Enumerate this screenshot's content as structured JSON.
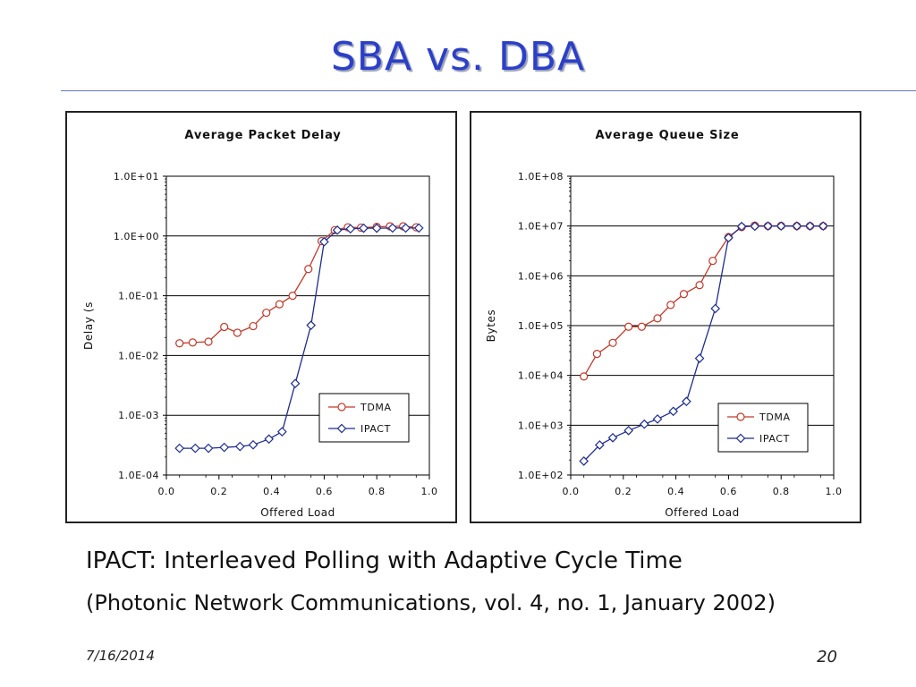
{
  "slide": {
    "title": "SBA vs.  DBA",
    "caption_line1": "IPACT: Interleaved Polling with Adaptive Cycle Time",
    "caption_line2": "(Photonic Network Communications, vol. 4, no. 1, January 2002)",
    "date": "7/16/2014",
    "page_number": "20"
  },
  "colors": {
    "title": "#2B3FC8",
    "tdma": "#C0392B",
    "ipact": "#1F2D8C"
  },
  "chart_data": [
    {
      "type": "line",
      "title": "Average Packet Delay",
      "xlabel": "Offered Load",
      "ylabel": "Delay (s",
      "yscale": "log",
      "xlim": [
        0.0,
        1.0
      ],
      "ylim": [
        0.0001,
        10
      ],
      "x_ticks": [
        "0.0",
        "0.2",
        "0.4",
        "0.6",
        "0.8",
        "1.0"
      ],
      "y_ticks": [
        "1.0E-04",
        "1.0E-03",
        "1.0E-02",
        "1.0E-01",
        "1.0E+00",
        "1.0E+01"
      ],
      "grid": "horizontal",
      "legend_position": "bottom-right",
      "series": [
        {
          "name": "TDMA",
          "marker": "circle",
          "x": [
            0.05,
            0.1,
            0.16,
            0.22,
            0.27,
            0.33,
            0.38,
            0.43,
            0.48,
            0.54,
            0.59,
            0.64,
            0.69,
            0.74,
            0.8,
            0.85,
            0.9,
            0.95
          ],
          "y": [
            0.016,
            0.0165,
            0.017,
            0.03,
            0.024,
            0.031,
            0.052,
            0.072,
            0.1,
            0.28,
            0.82,
            1.25,
            1.4,
            1.38,
            1.42,
            1.45,
            1.45,
            1.4
          ]
        },
        {
          "name": "IPACT",
          "marker": "diamond",
          "x": [
            0.05,
            0.11,
            0.16,
            0.22,
            0.28,
            0.33,
            0.39,
            0.44,
            0.49,
            0.55,
            0.6,
            0.65,
            0.7,
            0.75,
            0.8,
            0.86,
            0.91,
            0.96
          ],
          "y": [
            0.00028,
            0.00028,
            0.00028,
            0.00029,
            0.0003,
            0.00032,
            0.0004,
            0.00053,
            0.0034,
            0.032,
            0.8,
            1.25,
            1.32,
            1.35,
            1.35,
            1.36,
            1.36,
            1.36
          ]
        }
      ]
    },
    {
      "type": "line",
      "title": "Average Queue Size",
      "xlabel": "Offered Load",
      "ylabel": "Bytes",
      "yscale": "log",
      "xlim": [
        0.0,
        1.0
      ],
      "ylim": [
        100,
        100000000
      ],
      "x_ticks": [
        "0.0",
        "0.2",
        "0.4",
        "0.6",
        "0.8",
        "1.0"
      ],
      "y_ticks": [
        "1.0E+02",
        "1.0E+03",
        "1.0E+04",
        "1.0E+05",
        "1.0E+06",
        "1.0E+07",
        "1.0E+08"
      ],
      "grid": "horizontal",
      "legend_position": "bottom-right",
      "series": [
        {
          "name": "TDMA",
          "marker": "circle",
          "x": [
            0.05,
            0.1,
            0.16,
            0.22,
            0.27,
            0.33,
            0.38,
            0.43,
            0.49,
            0.54,
            0.6,
            0.65,
            0.7,
            0.75,
            0.8,
            0.86,
            0.91,
            0.96
          ],
          "y": [
            9500,
            27000,
            45000,
            95000,
            95000,
            140000,
            260000,
            430000,
            650000,
            2000000,
            6000000,
            9500000,
            10200000,
            10000000,
            10100000,
            10000000,
            10000000,
            10000000
          ]
        },
        {
          "name": "IPACT",
          "marker": "diamond",
          "x": [
            0.05,
            0.11,
            0.16,
            0.22,
            0.28,
            0.33,
            0.39,
            0.44,
            0.49,
            0.55,
            0.6,
            0.65,
            0.7,
            0.75,
            0.8,
            0.86,
            0.91,
            0.96
          ],
          "y": [
            190,
            400,
            560,
            780,
            1050,
            1330,
            1900,
            3000,
            22000,
            220000,
            5800000,
            9800000,
            9900000,
            10000000,
            10000000,
            10000000,
            10000000,
            10000000
          ]
        }
      ]
    }
  ]
}
